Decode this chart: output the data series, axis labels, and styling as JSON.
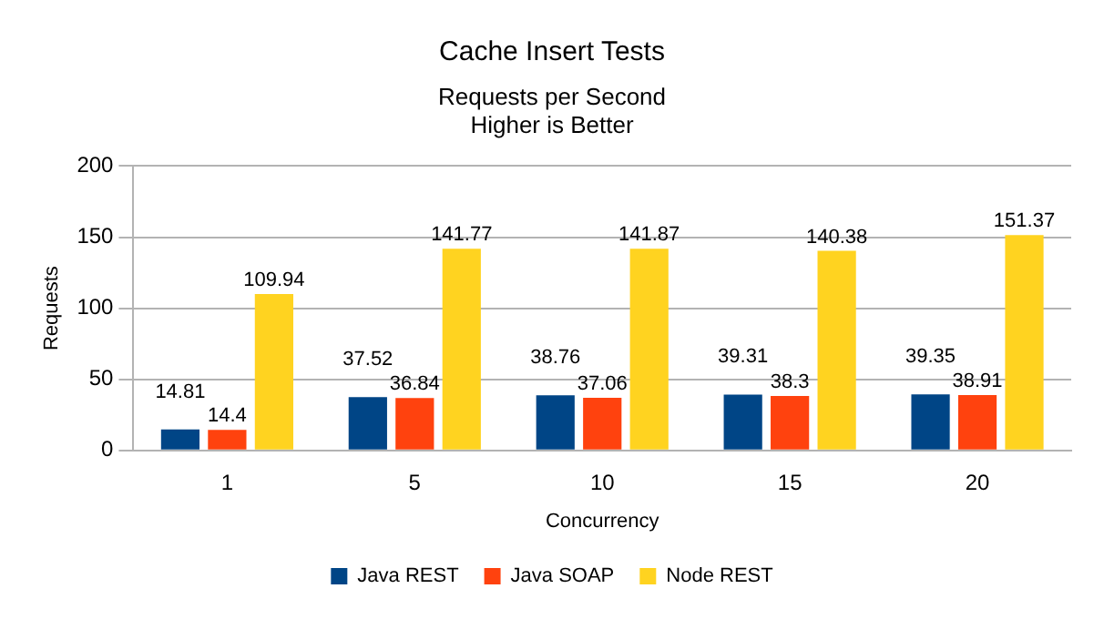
{
  "chart_data": {
    "type": "bar",
    "title": "Cache Insert Tests",
    "subtitle": "Requests per Second\nHigher is Better",
    "xlabel": "Concurrency",
    "ylabel": "Requests",
    "categories": [
      "1",
      "5",
      "10",
      "15",
      "20"
    ],
    "series": [
      {
        "name": "Java REST",
        "color": "#004586",
        "values": [
          14.81,
          37.52,
          38.76,
          39.31,
          39.35
        ]
      },
      {
        "name": "Java SOAP",
        "color": "#ff420e",
        "values": [
          14.4,
          36.84,
          37.06,
          38.3,
          38.91
        ]
      },
      {
        "name": "Node REST",
        "color": "#ffd320",
        "values": [
          109.94,
          141.77,
          141.87,
          140.38,
          151.37
        ]
      }
    ],
    "ylim": [
      0,
      200
    ],
    "yticks": [
      0,
      50,
      100,
      150,
      200
    ],
    "grid": "y",
    "legend": "bottom",
    "data_labels": true
  }
}
